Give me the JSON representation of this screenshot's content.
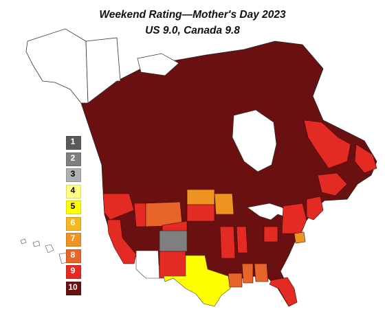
{
  "header": {
    "title": "Weekend Rating—Mother's Day 2023",
    "subtitle": "US 9.0, Canada 9.8"
  },
  "legend": [
    {
      "label": "1",
      "color": "#5a5a5a",
      "text_color": "#ffffff"
    },
    {
      "label": "2",
      "color": "#7f7f7f",
      "text_color": "#ffffff"
    },
    {
      "label": "3",
      "color": "#b0b0b0",
      "text_color": "#000000"
    },
    {
      "label": "4",
      "color": "#ffff80",
      "text_color": "#000000"
    },
    {
      "label": "5",
      "color": "#ffff00",
      "text_color": "#000000"
    },
    {
      "label": "6",
      "color": "#f5b81e",
      "text_color": "#ffffff"
    },
    {
      "label": "7",
      "color": "#ef9420",
      "text_color": "#ffffff"
    },
    {
      "label": "8",
      "color": "#e8652a",
      "text_color": "#ffffff"
    },
    {
      "label": "9",
      "color": "#e32b24",
      "text_color": "#ffffff"
    },
    {
      "label": "10",
      "color": "#6b1010",
      "text_color": "#ffffff"
    }
  ],
  "colors": {
    "default_region": "#6b1010",
    "arctic": "#ffffff",
    "border": "#3a0606",
    "outline": "#222222"
  }
}
